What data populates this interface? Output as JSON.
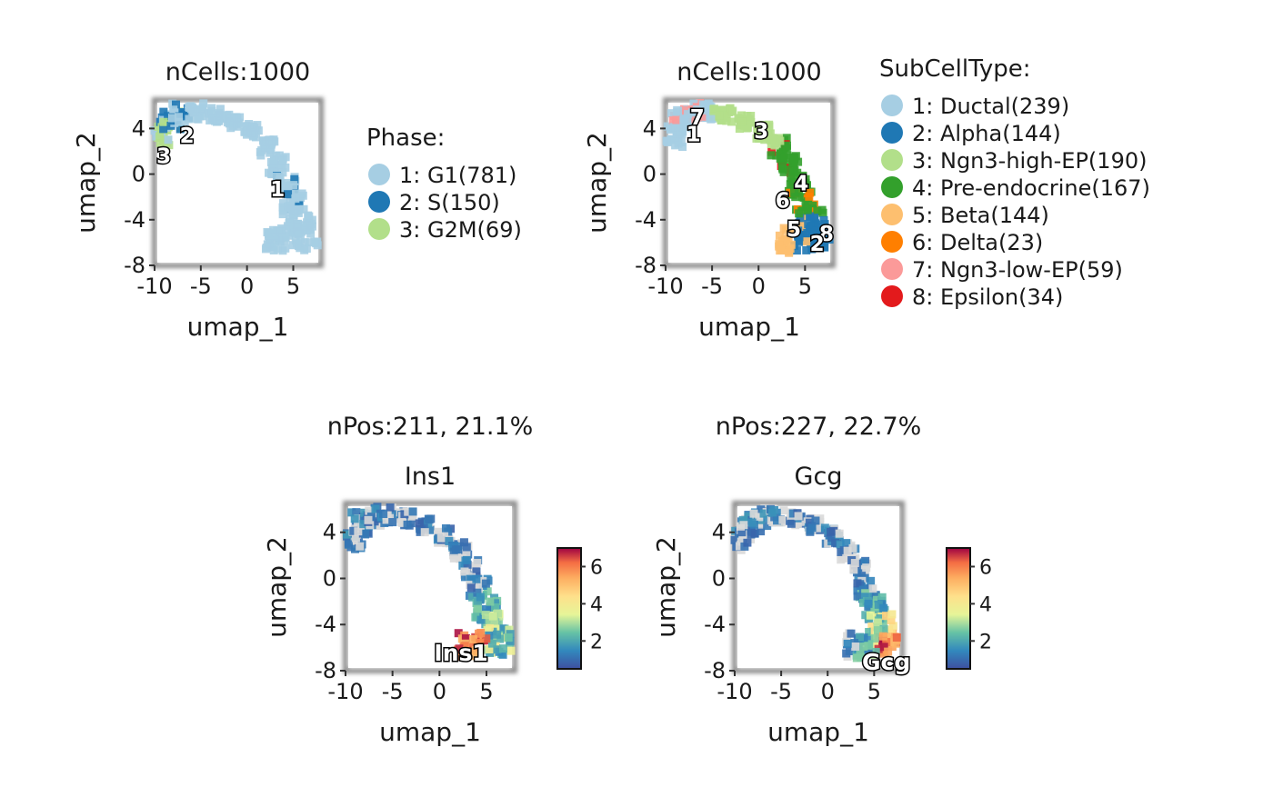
{
  "chart_data": [
    {
      "type": "scatter",
      "title": "nCells:1000",
      "xlabel": "umap_1",
      "ylabel": "umap_2",
      "xlim": [
        -10,
        8
      ],
      "ylim": [
        -8,
        6.5
      ],
      "xticks": [
        "-10",
        "-5",
        "0",
        "5"
      ],
      "yticks": [
        "-8",
        "-4",
        "0",
        "4"
      ],
      "legend_title": "Phase:",
      "legend_placement": "right",
      "series": [
        {
          "name": "1: G1(781)",
          "color": "#a6cee3"
        },
        {
          "name": "2: S(150)",
          "color": "#1f78b4"
        },
        {
          "name": "3: G2M(69)",
          "color": "#b2df8a"
        }
      ],
      "cluster_labels": [
        {
          "text": "1",
          "x": 3.3,
          "y": -1.3
        },
        {
          "text": "2",
          "x": -6.5,
          "y": 3.4
        },
        {
          "text": "3",
          "x": -9.0,
          "y": 1.6
        }
      ]
    },
    {
      "type": "scatter",
      "title": "nCells:1000",
      "xlabel": "umap_1",
      "ylabel": "umap_2",
      "xlim": [
        -10,
        8
      ],
      "ylim": [
        -8,
        6.5
      ],
      "xticks": [
        "-10",
        "-5",
        "0",
        "5"
      ],
      "yticks": [
        "-8",
        "-4",
        "0",
        "4"
      ],
      "legend_title": "SubCellType:",
      "legend_placement": "right",
      "series": [
        {
          "name": "1: Ductal(239)",
          "color": "#a6cee3"
        },
        {
          "name": "2: Alpha(144)",
          "color": "#1f78b4"
        },
        {
          "name": "3: Ngn3-high-EP(190)",
          "color": "#b2df8a"
        },
        {
          "name": "4: Pre-endocrine(167)",
          "color": "#33a02c"
        },
        {
          "name": "5: Beta(144)",
          "color": "#fdbf6f"
        },
        {
          "name": "6: Delta(23)",
          "color": "#ff7f00"
        },
        {
          "name": "7: Ngn3-low-EP(59)",
          "color": "#fb9a99"
        },
        {
          "name": "8: Epsilon(34)",
          "color": "#e31a1c"
        }
      ],
      "cluster_labels": [
        {
          "text": "7",
          "x": -6.6,
          "y": 5.0
        },
        {
          "text": "1",
          "x": -7.0,
          "y": 3.5
        },
        {
          "text": "3",
          "x": 0.3,
          "y": 3.8
        },
        {
          "text": "4",
          "x": 4.6,
          "y": -0.8
        },
        {
          "text": "6",
          "x": 2.6,
          "y": -2.3
        },
        {
          "text": "5",
          "x": 3.8,
          "y": -4.8
        },
        {
          "text": "8",
          "x": 7.3,
          "y": -5.2
        },
        {
          "text": "2",
          "x": 6.3,
          "y": -6.1
        }
      ]
    },
    {
      "type": "scatter",
      "title": "nPos:211, 21.1%",
      "subtitle": "Ins1",
      "xlabel": "umap_1",
      "ylabel": "umap_2",
      "xlim": [
        -10,
        8
      ],
      "ylim": [
        -8,
        6.5
      ],
      "xticks": [
        "-10",
        "-5",
        "0",
        "5"
      ],
      "yticks": [
        "-8",
        "-4",
        "0",
        "4"
      ],
      "colorbar": {
        "ticks": [
          "6",
          "4",
          "2"
        ],
        "range": [
          0.5,
          7
        ],
        "palette": "Spectral"
      },
      "cluster_labels": [
        {
          "text": "Ins1",
          "x": 2.3,
          "y": -6.5
        }
      ]
    },
    {
      "type": "scatter",
      "title": "nPos:227, 22.7%",
      "subtitle": "Gcg",
      "xlabel": "umap_1",
      "ylabel": "umap_2",
      "xlim": [
        -10,
        8
      ],
      "ylim": [
        -8,
        6.5
      ],
      "xticks": [
        "-10",
        "-5",
        "0",
        "5"
      ],
      "yticks": [
        "-8",
        "-4",
        "0",
        "4"
      ],
      "colorbar": {
        "ticks": [
          "6",
          "4",
          "2"
        ],
        "range": [
          0.5,
          7
        ],
        "palette": "Spectral"
      },
      "cluster_labels": [
        {
          "text": "Gcg",
          "x": 6.3,
          "y": -7.3
        }
      ]
    }
  ]
}
